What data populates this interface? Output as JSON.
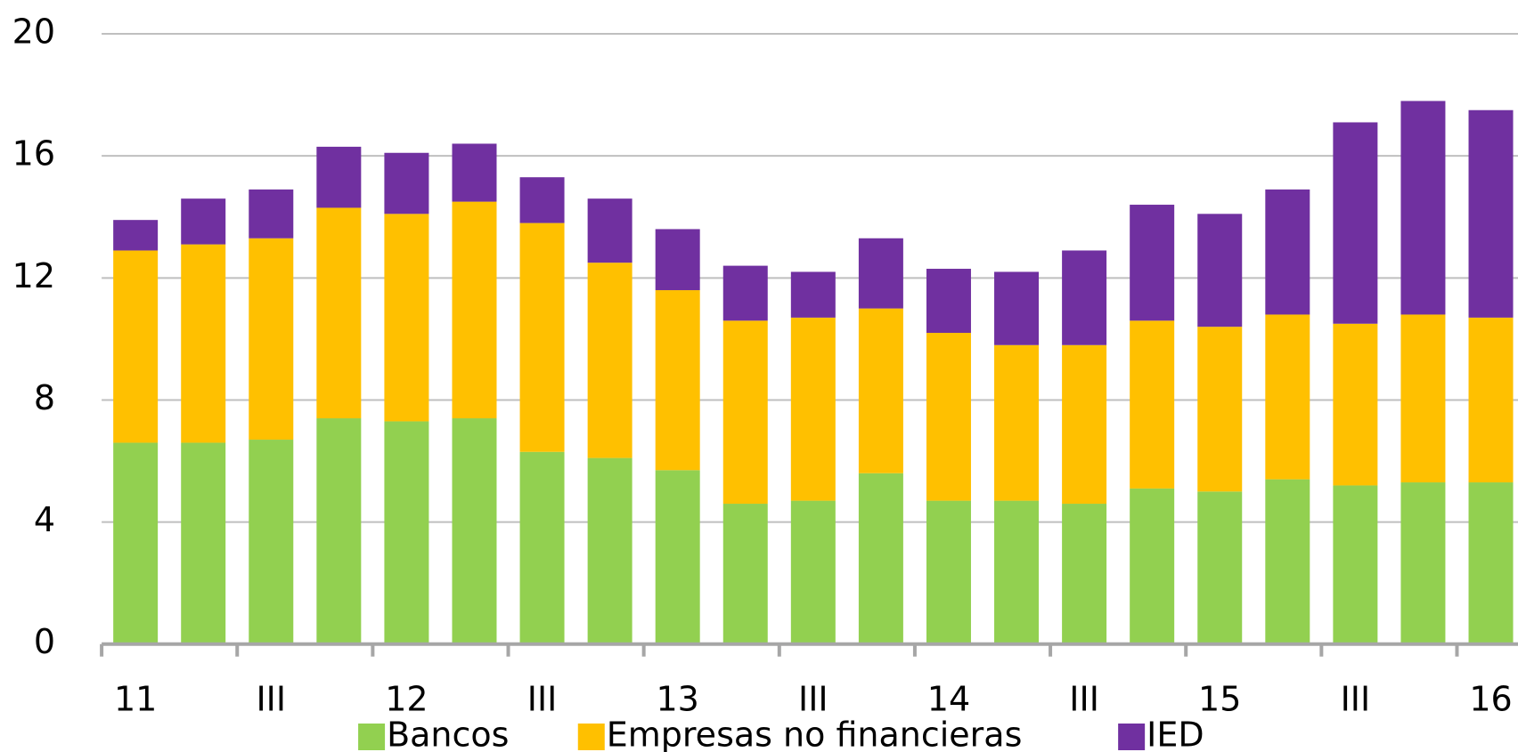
{
  "chart_data": {
    "type": "stacked_bar",
    "categories": [
      "11",
      null,
      "III",
      null,
      "12",
      null,
      "III",
      null,
      "13",
      null,
      "III",
      null,
      "14",
      null,
      "III",
      null,
      "15",
      null,
      "III",
      null,
      "16"
    ],
    "series": [
      {
        "name": "Bancos",
        "color": "#92d050",
        "values": [
          6.6,
          6.6,
          6.7,
          7.4,
          7.3,
          7.4,
          6.3,
          6.1,
          5.7,
          4.6,
          4.7,
          5.6,
          4.7,
          4.7,
          4.6,
          5.1,
          5.0,
          5.4,
          5.2,
          5.3,
          5.3
        ]
      },
      {
        "name": "Empresas no financieras",
        "color": "#ffc000",
        "values": [
          6.3,
          6.5,
          6.6,
          6.9,
          6.8,
          7.1,
          7.5,
          6.4,
          5.9,
          6.0,
          6.0,
          5.4,
          5.5,
          5.1,
          5.2,
          5.5,
          5.4,
          5.4,
          5.3,
          5.5,
          5.4
        ]
      },
      {
        "name": "IED",
        "color": "#7030a0",
        "values": [
          1.0,
          1.5,
          1.6,
          2.0,
          2.0,
          1.9,
          1.5,
          2.1,
          2.0,
          1.8,
          1.5,
          2.3,
          2.1,
          2.4,
          3.1,
          3.8,
          3.7,
          4.1,
          6.6,
          7.0,
          6.8
        ]
      }
    ],
    "ylim": [
      0,
      20
    ],
    "yticks": [
      0,
      4,
      8,
      12,
      16,
      20
    ],
    "grid": true
  }
}
